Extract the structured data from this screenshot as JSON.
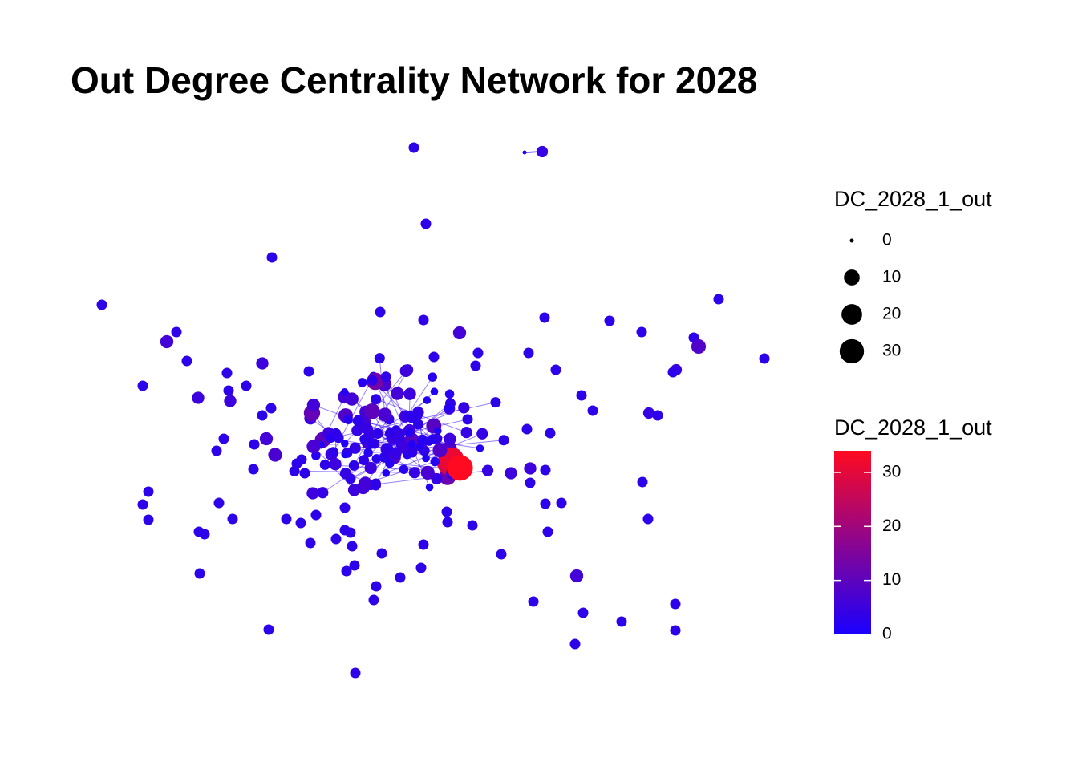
{
  "chart_data": {
    "type": "network",
    "title": "Out Degree Centrality Network for 2028",
    "size_legend": {
      "title": "DC_2028_1_out",
      "breaks": [
        0,
        10,
        20,
        30
      ]
    },
    "color_legend": {
      "title": "DC_2028_1_out",
      "lim": [
        0,
        34
      ],
      "ticks": [
        0,
        10,
        20,
        30
      ],
      "colors": [
        "#1a00ff",
        "#ff0a20"
      ]
    },
    "values": [
      3,
      4,
      0,
      3,
      3,
      3,
      3,
      3,
      3,
      6,
      3,
      3,
      3,
      3,
      8,
      3,
      6,
      3,
      3,
      3,
      3,
      3,
      5,
      3,
      3,
      3,
      3,
      4,
      3,
      3,
      3,
      3,
      5,
      5,
      3,
      3,
      3,
      3,
      4,
      3,
      3,
      3,
      3,
      3,
      6,
      3,
      7,
      3,
      3,
      3,
      3,
      5,
      3,
      5,
      3,
      3,
      3,
      3,
      3,
      5,
      3,
      3,
      3,
      3,
      3,
      3,
      3,
      3,
      3,
      3,
      3,
      3,
      3,
      3,
      3,
      3,
      3,
      3,
      3,
      3,
      3,
      3,
      3,
      3,
      3,
      3,
      3,
      3,
      6,
      3,
      3,
      3,
      3,
      3,
      3,
      3,
      3,
      3,
      3,
      4,
      3,
      5,
      2,
      6,
      3,
      1,
      4,
      8,
      3,
      2,
      5,
      3,
      10,
      4,
      3,
      1,
      6,
      3,
      4,
      2,
      9,
      3,
      5,
      4,
      1,
      3,
      7,
      2,
      4,
      3,
      5,
      12,
      2,
      4,
      3,
      1,
      6,
      3,
      4,
      28,
      2,
      5,
      3,
      8,
      4,
      1,
      3,
      6,
      2,
      4,
      3,
      11,
      5,
      2,
      3,
      1,
      4,
      7,
      3,
      2,
      4,
      3,
      5,
      1,
      6,
      3,
      2,
      9,
      4,
      3,
      1,
      5,
      3,
      31,
      2,
      4,
      6,
      3,
      1,
      4,
      3,
      8,
      2,
      5,
      3,
      1,
      4,
      6,
      3,
      2,
      5,
      3,
      4,
      1,
      7,
      3,
      2,
      4,
      13,
      3,
      5,
      1,
      2,
      4,
      3,
      6,
      2,
      34,
      3,
      4,
      1,
      5,
      3,
      2,
      8,
      4,
      3,
      1,
      5,
      3,
      2,
      4,
      6,
      1,
      3,
      5,
      2,
      10,
      4,
      3,
      1,
      6,
      2,
      4,
      3,
      7,
      5,
      1,
      3
    ]
  }
}
